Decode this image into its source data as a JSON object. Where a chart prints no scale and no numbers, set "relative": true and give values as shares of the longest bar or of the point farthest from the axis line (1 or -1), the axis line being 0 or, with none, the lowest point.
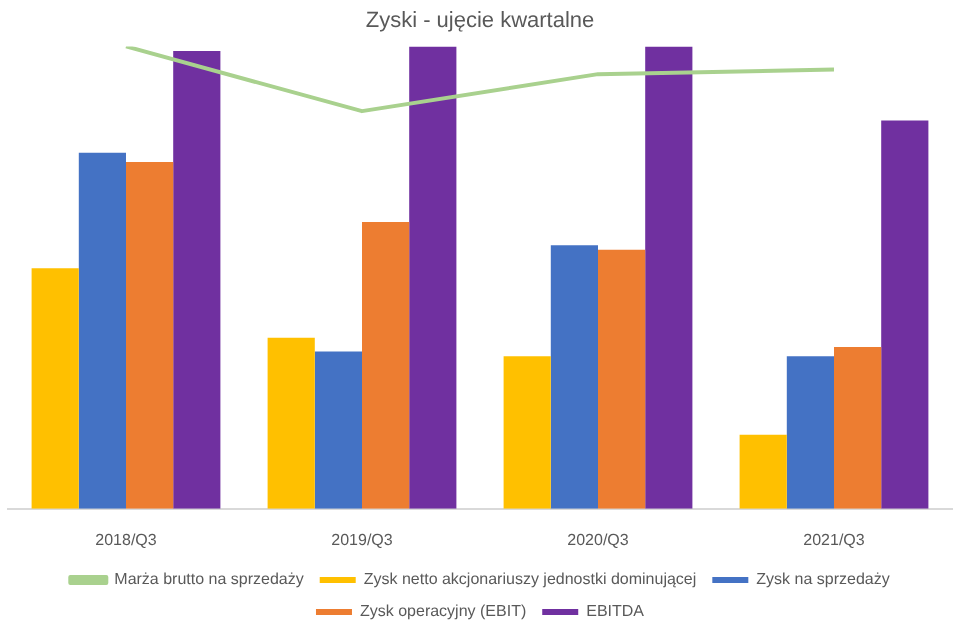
{
  "chart_data": {
    "type": "bar",
    "title": "Zyski - ujęcie kwartalne",
    "relative": true,
    "categories": [
      "2018/Q3",
      "2019/Q3",
      "2020/Q3",
      "2021/Q3"
    ],
    "series": [
      {
        "name": "Zysk netto akcjonariuszy jednostki dominującej",
        "color": "#ffc000",
        "values": [
          0.52,
          0.37,
          0.33,
          0.16
        ]
      },
      {
        "name": "Zysk na sprzedaży",
        "color": "#4472c4",
        "values": [
          0.77,
          0.34,
          0.57,
          0.33
        ]
      },
      {
        "name": "Zysk operacyjny (EBIT)",
        "color": "#ed7d31",
        "values": [
          0.75,
          0.62,
          0.56,
          0.35
        ]
      },
      {
        "name": "EBITDA",
        "color": "#7030a0",
        "values": [
          0.99,
          1.0,
          1.0,
          0.84
        ]
      },
      {
        "name": "Marża brutto na sprzedaży",
        "type": "line",
        "color": "#a9d18e",
        "values": [
          1.0,
          0.86,
          0.94,
          0.95
        ]
      }
    ],
    "grid": false,
    "legend": "bottom",
    "marker": "none",
    "line_style": "solid"
  }
}
